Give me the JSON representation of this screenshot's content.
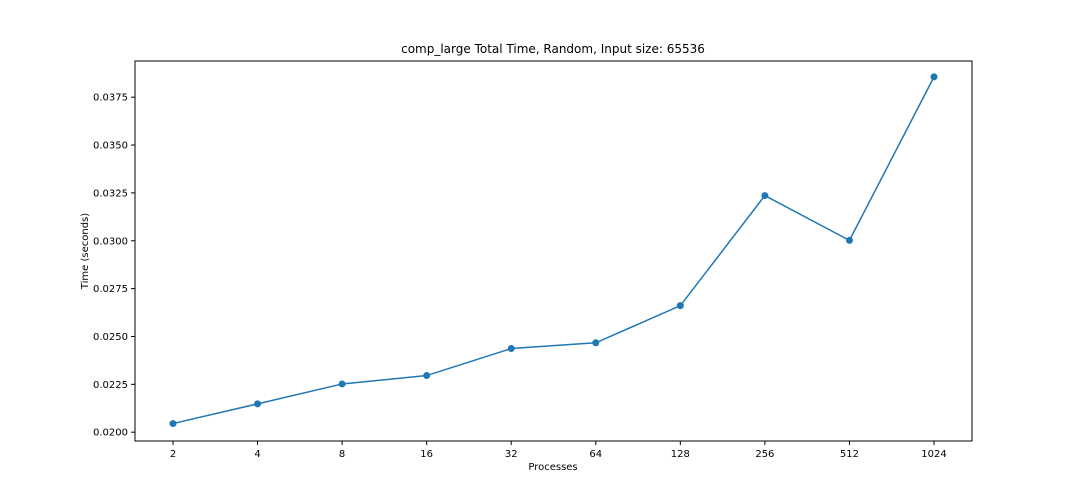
{
  "chart_data": {
    "type": "line",
    "title": "comp_large Total Time, Random, Input size: 65536",
    "xlabel": "Processes",
    "ylabel": "Time (seconds)",
    "categories": [
      "2",
      "4",
      "8",
      "16",
      "32",
      "64",
      "128",
      "256",
      "512",
      "1024"
    ],
    "series": [
      {
        "values": [
          0.02045,
          0.02148,
          0.02252,
          0.02296,
          0.02437,
          0.02467,
          0.02661,
          0.03236,
          0.03002,
          0.03856
        ],
        "color": "#1f77b4",
        "marker": "circle"
      }
    ],
    "yticks": [
      {
        "value": 0.02,
        "label": "0.0200"
      },
      {
        "value": 0.0225,
        "label": "0.0225"
      },
      {
        "value": 0.025,
        "label": "0.0250"
      },
      {
        "value": 0.0275,
        "label": "0.0275"
      },
      {
        "value": 0.03,
        "label": "0.0300"
      },
      {
        "value": 0.0325,
        "label": "0.0325"
      },
      {
        "value": 0.035,
        "label": "0.0350"
      },
      {
        "value": 0.0375,
        "label": "0.0375"
      }
    ],
    "ylim": [
      0.01954,
      0.03939
    ],
    "grid": false,
    "legend": "none"
  }
}
